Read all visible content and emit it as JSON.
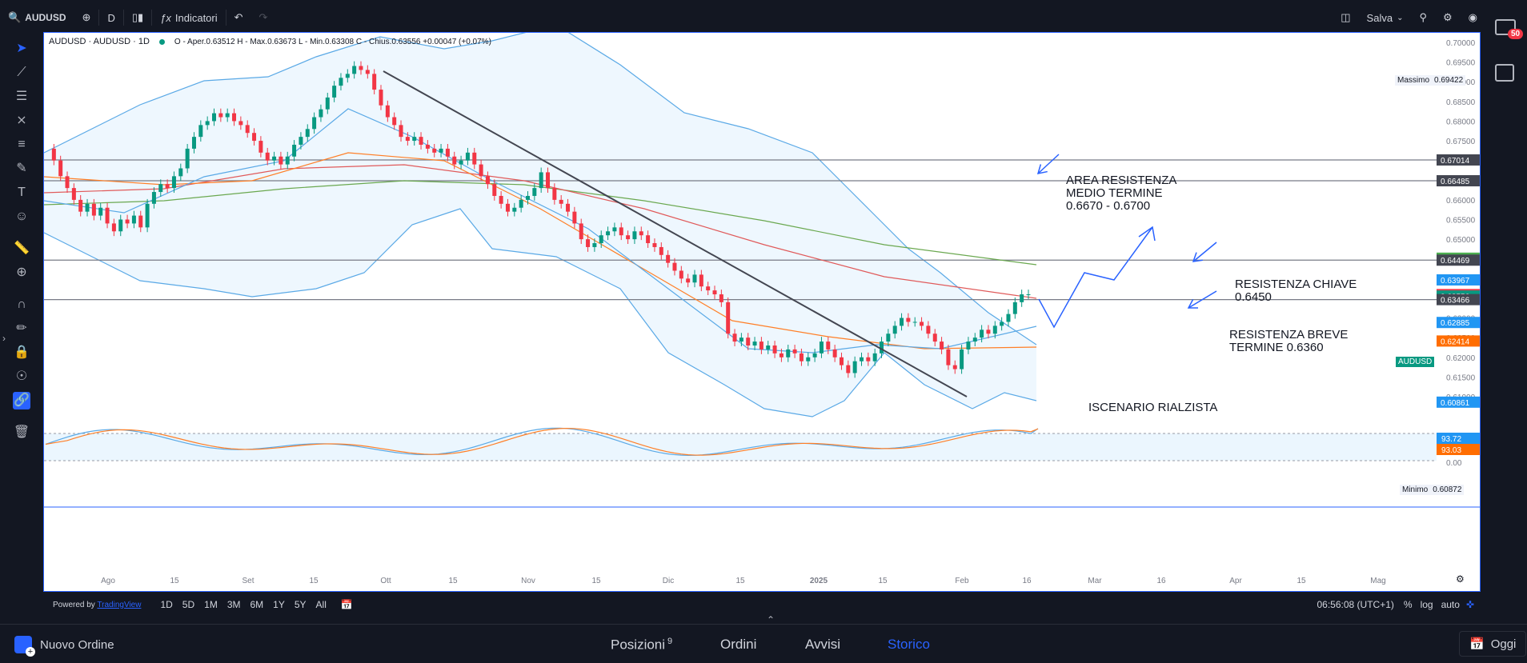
{
  "topbar": {
    "symbol": "AUDUSD",
    "interval": "D",
    "indicators_label": "Indicatori",
    "save_label": "Salva"
  },
  "legend": {
    "title": "AUDUSD · AUDUSD · 1D",
    "ohlc": "O - Aper.0.63512  H - Max.0.63673  L - Min.0.63308  C - Chius.0.63556  +0.00047 (+0.07%)"
  },
  "annotations": {
    "area_res_1": "AREA RESISTENZA",
    "area_res_2": "MEDIO TERMINE",
    "area_res_3": "0.6670 - 0.6700",
    "res_key_1": "RESISTENZA CHIAVE",
    "res_key_2": "0.6450",
    "res_short_1": "RESISTENZA BREVE",
    "res_short_2": "TERMINE 0.6360",
    "scenario": "ISCENARIO RIALZISTA"
  },
  "price_axis": {
    "ticks": [
      "0.70000",
      "0.69500",
      "0.69000",
      "0.68500",
      "0.68000",
      "0.67500",
      "0.67000",
      "0.66500",
      "0.66000",
      "0.65500",
      "0.65000",
      "0.64500",
      "0.64000",
      "0.63500",
      "0.63000",
      "0.62500",
      "0.62000",
      "0.61500",
      "0.61000"
    ],
    "massimo_label": "Massimo",
    "massimo_value": "0.69422",
    "minimo_label": "Minimo",
    "minimo_value": "0.60872",
    "boxes": [
      {
        "value": "0.67014",
        "color": "#434651"
      },
      {
        "value": "0.66485",
        "color": "#434651"
      },
      {
        "value": "0.64518",
        "color": "#4caf50"
      },
      {
        "value": "0.64469",
        "color": "#434651"
      },
      {
        "value": "0.63967",
        "color": "#2196f3"
      },
      {
        "value": "0.63594",
        "color": "#f23645"
      },
      {
        "value": "0.63556",
        "color": "#089981"
      },
      {
        "value": "0.63466",
        "color": "#434651"
      },
      {
        "value": "0.62885",
        "color": "#2196f3"
      },
      {
        "value": "0.62414",
        "color": "#ff6d00"
      },
      {
        "value": "0.60861",
        "color": "#2196f3"
      }
    ],
    "symbol_tag": "AUDUSD"
  },
  "osc_axis": {
    "ticks": [
      "50.00",
      "0.00"
    ],
    "boxes": [
      {
        "value": "93.72",
        "color": "#2196f3"
      },
      {
        "value": "93.03",
        "color": "#ff6d00"
      }
    ]
  },
  "time_axis": [
    "Ago",
    "15",
    "Set",
    "15",
    "Ott",
    "15",
    "Nov",
    "15",
    "Dic",
    "15",
    "2025",
    "15",
    "Feb",
    "16",
    "Mar",
    "16",
    "Apr",
    "15",
    "Mag"
  ],
  "bottom_bar": {
    "powered": "Powered by",
    "brand": "TradingView",
    "timeframes": [
      "1D",
      "5D",
      "1M",
      "3M",
      "6M",
      "1Y",
      "5Y",
      "All"
    ],
    "clock": "06:56:08 (UTC+1)",
    "pct": "%",
    "log": "log",
    "auto": "auto"
  },
  "footer": {
    "new_order": "Nuovo Ordine",
    "tabs": [
      "Posizioni",
      "Ordini",
      "Avvisi",
      "Storico"
    ],
    "positions_count": "9",
    "active_tab": "Storico",
    "today": "Oggi"
  },
  "notifications": "50",
  "colors": {
    "accent": "#2962ff",
    "up": "#089981",
    "down": "#f23645",
    "bb": "#5aa9e6",
    "ema_orange": "#ff7f27",
    "ema_red": "#e05a5a",
    "ema_green": "#6aa84f"
  }
}
